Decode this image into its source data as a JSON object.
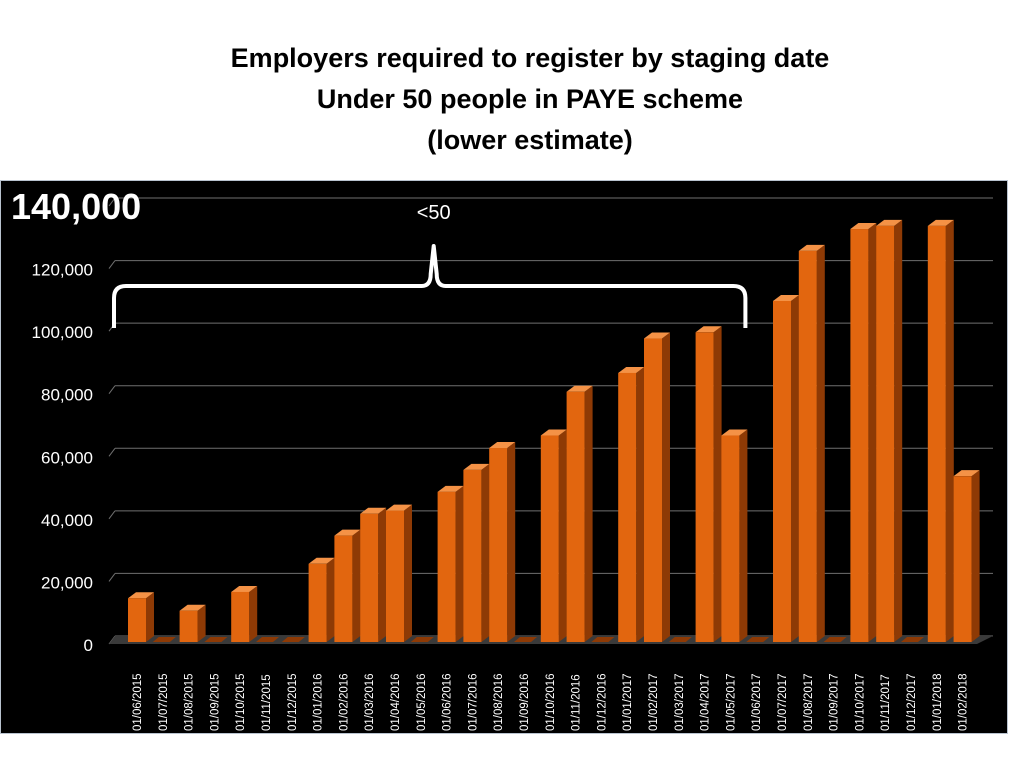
{
  "title": {
    "line1": "Employers required to register by staging date",
    "line2": "Under 50 people in PAYE scheme",
    "line3": "(lower estimate)"
  },
  "colors": {
    "bar_front": "#e2660f",
    "bar_side": "#8e3a05",
    "bar_top": "#f49246",
    "background": "#000000",
    "gridline": "#6f6f6f",
    "text": "#ffffff"
  },
  "chart_data": {
    "type": "bar",
    "ylim": [
      0,
      140000
    ],
    "yticks": [
      0,
      20000,
      40000,
      60000,
      80000,
      100000,
      120000,
      140000
    ],
    "ytick_labels": [
      "0",
      "20,000",
      "40,000",
      "60,000",
      "80,000",
      "100,000",
      "120,000",
      "140,000"
    ],
    "categories": [
      "01/06/2015",
      "01/07/2015",
      "01/08/2015",
      "01/09/2015",
      "01/10/2015",
      "01/11/2015",
      "01/12/2015",
      "01/01/2016",
      "01/02/2016",
      "01/03/2016",
      "01/04/2016",
      "01/05/2016",
      "01/06/2016",
      "01/07/2016",
      "01/08/2016",
      "01/09/2016",
      "01/10/2016",
      "01/11/2016",
      "01/12/2016",
      "01/01/2017",
      "01/02/2017",
      "01/03/2017",
      "01/04/2017",
      "01/05/2017",
      "01/06/2017",
      "01/07/2017",
      "01/08/2017",
      "01/09/2017",
      "01/10/2017",
      "01/11/2017",
      "01/12/2017",
      "01/01/2018",
      "01/02/2018"
    ],
    "values": [
      14000,
      0,
      10000,
      0,
      16000,
      0,
      0,
      25000,
      34000,
      41000,
      42000,
      0,
      48000,
      55000,
      62000,
      0,
      66000,
      80000,
      0,
      86000,
      97000,
      0,
      99000,
      66000,
      0,
      109000,
      125000,
      0,
      132000,
      133000,
      0,
      133000,
      53000
    ],
    "annotation": {
      "text": "<50",
      "from_category": "01/06/2015",
      "to_category": "01/05/2017"
    },
    "grid": true,
    "legend": "none"
  }
}
